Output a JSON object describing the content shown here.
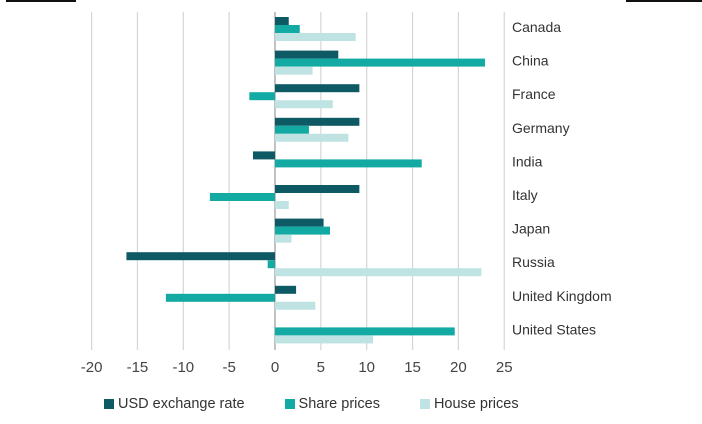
{
  "chart_data": {
    "type": "bar",
    "orientation": "horizontal",
    "title": "",
    "xlabel": "",
    "ylabel": "",
    "xlim": [
      -20,
      25
    ],
    "xticks": [
      -20,
      -15,
      -10,
      -5,
      0,
      5,
      10,
      15,
      20,
      25
    ],
    "grid": true,
    "legend_position": "bottom",
    "categories": [
      "Canada",
      "China",
      "France",
      "Germany",
      "India",
      "Italy",
      "Japan",
      "Russia",
      "United Kingdom",
      "United States"
    ],
    "series": [
      {
        "name": "USD exchange rate",
        "color": "#0e5a64",
        "values": [
          1.5,
          6.9,
          9.2,
          9.2,
          -2.4,
          9.2,
          5.3,
          -16.2,
          2.3,
          0
        ]
      },
      {
        "name": "Share prices",
        "color": "#14aaa4",
        "values": [
          2.7,
          22.9,
          -2.8,
          3.7,
          16.0,
          -7.1,
          6.0,
          -0.8,
          -11.9,
          19.6
        ]
      },
      {
        "name": "House prices",
        "color": "#bfe3e2",
        "values": [
          8.8,
          4.1,
          6.3,
          8.0,
          0,
          1.5,
          1.8,
          22.5,
          4.4,
          10.7
        ]
      }
    ]
  }
}
